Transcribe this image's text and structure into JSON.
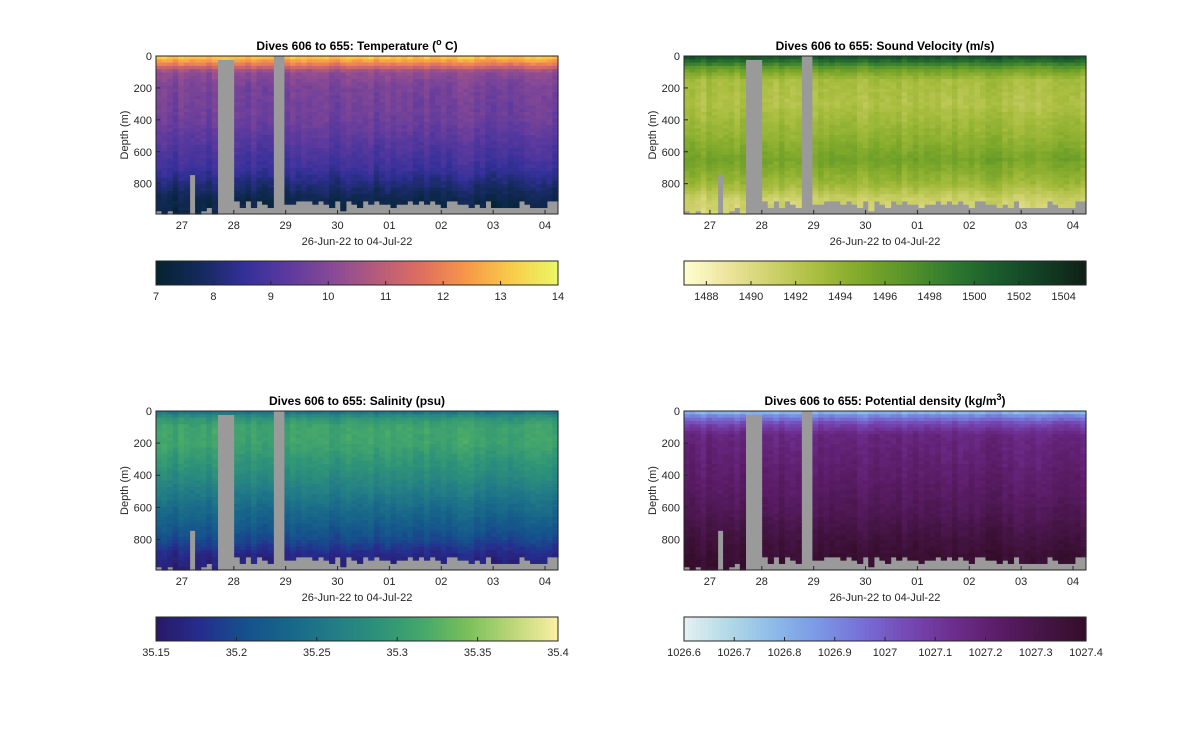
{
  "panels": [
    {
      "title": "Dives 606 to 655: Temperature (",
      "title_sup": "o",
      "title_end": " C)",
      "ylabel": "Depth (m)",
      "xlabel": "26-Jun-22 to 04-Jul-22",
      "colorbar": {
        "min": 7,
        "max": 14,
        "ticks": [
          "7",
          "8",
          "9",
          "10",
          "11",
          "12",
          "13",
          "14"
        ]
      }
    },
    {
      "title": "Dives 606 to 655: Sound Velocity (m/s)",
      "title_sup": "",
      "title_end": "",
      "ylabel": "Depth (m)",
      "xlabel": "26-Jun-22 to 04-Jul-22",
      "colorbar": {
        "min": 1487,
        "max": 1505,
        "ticks": [
          "1488",
          "1490",
          "1492",
          "1494",
          "1496",
          "1498",
          "1500",
          "1502",
          "1504"
        ]
      }
    },
    {
      "title": "Dives 606 to 655: Salinity (psu)",
      "title_sup": "",
      "title_end": "",
      "ylabel": "Depth (m)",
      "xlabel": "26-Jun-22 to 04-Jul-22",
      "colorbar": {
        "min": 35.15,
        "max": 35.4,
        "ticks": [
          "35.15",
          "35.2",
          "35.25",
          "35.3",
          "35.35",
          "35.4"
        ]
      }
    },
    {
      "title": "Dives 606 to 655: Potential density (kg/m",
      "title_sup": "3",
      "title_end": ")",
      "ylabel": "Depth (m)",
      "xlabel": "26-Jun-22 to 04-Jul-22",
      "colorbar": {
        "min": 1026.6,
        "max": 1027.4,
        "ticks": [
          "1026.6",
          "1026.7",
          "1026.8",
          "1026.9",
          "1027",
          "1027.1",
          "1027.2",
          "1027.3",
          "1027.4"
        ]
      }
    }
  ],
  "chart_data": [
    {
      "type": "heatmap",
      "title": "Dives 606 to 655: Temperature (o C)",
      "xlabel": "26-Jun-22 to 04-Jul-22",
      "ylabel": "Depth (m)",
      "x_ticks": [
        "27",
        "28",
        "29",
        "30",
        "01",
        "02",
        "03",
        "04"
      ],
      "y_ticks": [
        0,
        200,
        400,
        600,
        800
      ],
      "ylim": [
        990,
        0
      ],
      "y_reversed": true,
      "x_range_days": [
        26.5,
        34.25
      ],
      "profile_depth_m": [
        0,
        50,
        100,
        200,
        400,
        600,
        700,
        800,
        900,
        990
      ],
      "profile_values": [
        13.3,
        12.0,
        10.2,
        9.8,
        9.6,
        9.0,
        8.7,
        8.1,
        7.5,
        7.4
      ],
      "colorbar_range": [
        7,
        14
      ],
      "colormap": "thermal"
    },
    {
      "type": "heatmap",
      "title": "Dives 606 to 655: Sound Velocity (m/s)",
      "xlabel": "26-Jun-22 to 04-Jul-22",
      "ylabel": "Depth (m)",
      "x_ticks": [
        "27",
        "28",
        "29",
        "30",
        "01",
        "02",
        "03",
        "04"
      ],
      "y_ticks": [
        0,
        200,
        400,
        600,
        800
      ],
      "ylim": [
        990,
        0
      ],
      "y_reversed": true,
      "x_range_days": [
        26.5,
        34.25
      ],
      "profile_depth_m": [
        0,
        30,
        80,
        150,
        300,
        500,
        650,
        800,
        900,
        990
      ],
      "profile_values": [
        1502,
        1500,
        1496,
        1493,
        1492.5,
        1494,
        1495.5,
        1493.5,
        1491,
        1490.5
      ],
      "colorbar_range": [
        1487,
        1505
      ],
      "colormap": "speed"
    },
    {
      "type": "heatmap",
      "title": "Dives 606 to 655: Salinity (psu)",
      "xlabel": "26-Jun-22 to 04-Jul-22",
      "ylabel": "Depth (m)",
      "x_ticks": [
        "27",
        "28",
        "29",
        "30",
        "01",
        "02",
        "03",
        "04"
      ],
      "y_ticks": [
        0,
        200,
        400,
        600,
        800
      ],
      "ylim": [
        990,
        0
      ],
      "y_reversed": true,
      "x_range_days": [
        26.5,
        34.25
      ],
      "profile_depth_m": [
        0,
        40,
        100,
        200,
        400,
        550,
        700,
        800,
        900,
        990
      ],
      "profile_values": [
        35.24,
        35.29,
        35.31,
        35.31,
        35.28,
        35.25,
        35.22,
        35.2,
        35.17,
        35.16
      ],
      "colorbar_range": [
        35.15,
        35.4
      ],
      "colormap": "haline"
    },
    {
      "type": "heatmap",
      "title": "Dives 606 to 655: Potential density (kg/m3)",
      "xlabel": "26-Jun-22 to 04-Jul-22",
      "ylabel": "Depth (m)",
      "x_ticks": [
        "27",
        "28",
        "29",
        "30",
        "01",
        "02",
        "03",
        "04"
      ],
      "y_ticks": [
        0,
        200,
        400,
        600,
        800
      ],
      "ylim": [
        990,
        0
      ],
      "y_reversed": true,
      "x_range_days": [
        26.5,
        34.25
      ],
      "profile_depth_m": [
        0,
        30,
        80,
        150,
        300,
        500,
        650,
        800,
        900,
        990
      ],
      "profile_values": [
        1026.75,
        1026.9,
        1027.05,
        1027.17,
        1027.2,
        1027.24,
        1027.28,
        1027.34,
        1027.37,
        1027.38
      ],
      "colorbar_range": [
        1026.6,
        1027.4
      ],
      "colormap": "dense"
    }
  ]
}
